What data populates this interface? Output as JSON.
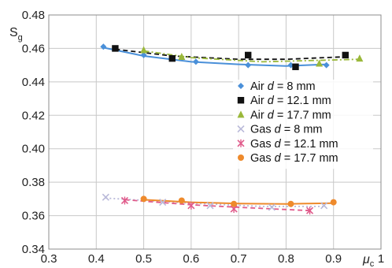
{
  "chart_data": {
    "type": "scatter",
    "ylabel": "S",
    "ylabel_sub": "g",
    "xlabel": "μ",
    "xlabel_sub": "c",
    "xlim": [
      0.3,
      1.0
    ],
    "ylim": [
      0.34,
      0.48
    ],
    "xticks": [
      "0.3",
      "0.4",
      "0.5",
      "0.6",
      "0.7",
      "0.8",
      "0.9",
      "1"
    ],
    "yticks": [
      "0.34",
      "0.36",
      "0.38",
      "0.40",
      "0.42",
      "0.44",
      "0.46",
      "0.48"
    ],
    "grid": true,
    "legend_position": "right",
    "series": [
      {
        "name": "Air d = 8 mm",
        "name_prefix": "Air ",
        "name_suffix": " = 8 mm",
        "marker": "diamond",
        "color": "#4a90d9",
        "line": "solid",
        "points": [
          [
            0.415,
            0.461
          ],
          [
            0.5,
            0.456
          ],
          [
            0.61,
            0.452
          ],
          [
            0.72,
            0.45
          ],
          [
            0.81,
            0.45
          ],
          [
            0.885,
            0.45
          ]
        ],
        "trend": [
          [
            0.415,
            0.4605
          ],
          [
            0.5,
            0.4555
          ],
          [
            0.6,
            0.452
          ],
          [
            0.7,
            0.4505
          ],
          [
            0.8,
            0.4495
          ],
          [
            0.885,
            0.4505
          ]
        ]
      },
      {
        "name": "Air d = 12.1 mm",
        "name_prefix": "Air ",
        "name_suffix": " = 12.1 mm",
        "marker": "square",
        "color": "#111111",
        "line": "dashed",
        "points": [
          [
            0.44,
            0.46
          ],
          [
            0.56,
            0.454
          ],
          [
            0.72,
            0.456
          ],
          [
            0.82,
            0.449
          ],
          [
            0.925,
            0.456
          ]
        ],
        "trend": [
          [
            0.44,
            0.4595
          ],
          [
            0.56,
            0.4555
          ],
          [
            0.7,
            0.4535
          ],
          [
            0.8,
            0.4535
          ],
          [
            0.925,
            0.455
          ]
        ]
      },
      {
        "name": "Air d = 17.7 mm",
        "name_prefix": "Air ",
        "name_suffix": " = 17.7 mm",
        "marker": "triangle",
        "color": "#9ab83a",
        "line": "dashdot",
        "points": [
          [
            0.5,
            0.459
          ],
          [
            0.58,
            0.455
          ],
          [
            0.87,
            0.451
          ],
          [
            0.955,
            0.454
          ]
        ],
        "trend": [
          [
            0.5,
            0.4585
          ],
          [
            0.6,
            0.4545
          ],
          [
            0.75,
            0.452
          ],
          [
            0.955,
            0.4535
          ]
        ]
      },
      {
        "name": "Gas d = 8 mm",
        "name_prefix": "Gas ",
        "name_suffix": " = 8 mm",
        "marker": "x",
        "color": "#b9b9d9",
        "line": "dotted",
        "points": [
          [
            0.42,
            0.371
          ],
          [
            0.54,
            0.368
          ],
          [
            0.64,
            0.366
          ],
          [
            0.77,
            0.365
          ],
          [
            0.88,
            0.366
          ]
        ],
        "trend": [
          [
            0.42,
            0.3705
          ],
          [
            0.6,
            0.3675
          ],
          [
            0.75,
            0.3655
          ],
          [
            0.88,
            0.3655
          ]
        ]
      },
      {
        "name": "Gas d = 12.1 mm",
        "name_prefix": "Gas ",
        "name_suffix": " = 12.1 mm",
        "marker": "star",
        "color": "#e05a8a",
        "line": "dashed",
        "points": [
          [
            0.46,
            0.369
          ],
          [
            0.6,
            0.366
          ],
          [
            0.69,
            0.364
          ],
          [
            0.85,
            0.363
          ]
        ],
        "trend": [
          [
            0.46,
            0.3695
          ],
          [
            0.6,
            0.3665
          ],
          [
            0.7,
            0.365
          ],
          [
            0.85,
            0.363
          ]
        ]
      },
      {
        "name": "Gas d = 17.7 mm",
        "name_prefix": "Gas ",
        "name_suffix": " = 17.7 mm",
        "marker": "circle",
        "color": "#ee8a2c",
        "line": "solid",
        "points": [
          [
            0.5,
            0.37
          ],
          [
            0.58,
            0.369
          ],
          [
            0.69,
            0.367
          ],
          [
            0.81,
            0.367
          ],
          [
            0.9,
            0.368
          ]
        ],
        "trend": [
          [
            0.5,
            0.3695
          ],
          [
            0.6,
            0.368
          ],
          [
            0.7,
            0.3672
          ],
          [
            0.8,
            0.367
          ],
          [
            0.9,
            0.3675
          ]
        ]
      }
    ],
    "legend_variable": "d"
  }
}
